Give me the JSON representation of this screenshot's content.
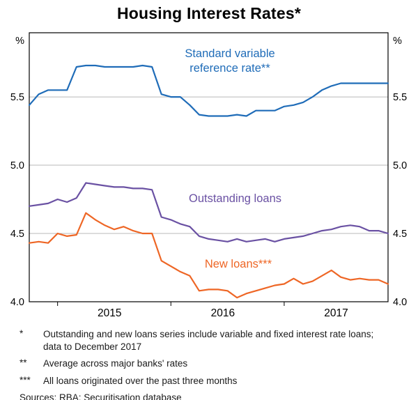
{
  "title": "Housing Interest Rates*",
  "y_unit_left": "%",
  "y_unit_right": "%",
  "annotations": {
    "blue_line1": "Standard variable",
    "blue_line2": "reference rate**",
    "purple": "Outstanding loans",
    "orange": "New loans***"
  },
  "footnotes": [
    {
      "marker": "*",
      "text": "Outstanding and new loans series include variable and fixed interest rate loans; data to December 2017"
    },
    {
      "marker": "**",
      "text": "Average across major banks' rates"
    },
    {
      "marker": "***",
      "text": "All loans originated over the past three months"
    }
  ],
  "sources": "Sources: RBA; Securitisation database",
  "colors": {
    "blue": "#1f6cb8",
    "purple": "#6a51a3",
    "orange": "#ee6625",
    "grid": "#b9b9b9",
    "axis": "#000000"
  },
  "chart_data": {
    "type": "line",
    "title": "Housing Interest Rates*",
    "xlabel": "",
    "ylabel": "%",
    "ylim": [
      4.0,
      5.97
    ],
    "yticks": [
      4.0,
      4.5,
      5.0,
      5.5
    ],
    "grid": true,
    "axis_box": true,
    "year_labels": [
      "2015",
      "2016",
      "2017"
    ],
    "x_months": [
      "2014-10",
      "2014-11",
      "2014-12",
      "2015-01",
      "2015-02",
      "2015-03",
      "2015-04",
      "2015-05",
      "2015-06",
      "2015-07",
      "2015-08",
      "2015-09",
      "2015-10",
      "2015-11",
      "2015-12",
      "2016-01",
      "2016-02",
      "2016-03",
      "2016-04",
      "2016-05",
      "2016-06",
      "2016-07",
      "2016-08",
      "2016-09",
      "2016-10",
      "2016-11",
      "2016-12",
      "2017-01",
      "2017-02",
      "2017-03",
      "2017-04",
      "2017-05",
      "2017-06",
      "2017-07",
      "2017-08",
      "2017-09",
      "2017-10",
      "2017-11",
      "2017-12"
    ],
    "series": [
      {
        "name": "Standard variable reference rate**",
        "color": "#1f6cb8",
        "values": [
          5.44,
          5.52,
          5.55,
          5.55,
          5.55,
          5.72,
          5.73,
          5.73,
          5.72,
          5.72,
          5.72,
          5.72,
          5.73,
          5.72,
          5.52,
          5.5,
          5.5,
          5.44,
          5.37,
          5.36,
          5.36,
          5.36,
          5.37,
          5.36,
          5.4,
          5.4,
          5.4,
          5.43,
          5.44,
          5.46,
          5.5,
          5.55,
          5.58,
          5.6,
          5.6,
          5.6,
          5.6,
          5.6,
          5.6
        ]
      },
      {
        "name": "Outstanding loans",
        "color": "#6a51a3",
        "values": [
          4.7,
          4.71,
          4.72,
          4.75,
          4.73,
          4.76,
          4.87,
          4.86,
          4.85,
          4.84,
          4.84,
          4.83,
          4.83,
          4.82,
          4.62,
          4.6,
          4.57,
          4.55,
          4.48,
          4.46,
          4.45,
          4.44,
          4.46,
          4.44,
          4.45,
          4.46,
          4.44,
          4.46,
          4.47,
          4.48,
          4.5,
          4.52,
          4.53,
          4.55,
          4.56,
          4.55,
          4.52,
          4.52,
          4.5
        ]
      },
      {
        "name": "New loans***",
        "color": "#ee6625",
        "values": [
          4.43,
          4.44,
          4.43,
          4.5,
          4.48,
          4.49,
          4.65,
          4.6,
          4.56,
          4.53,
          4.55,
          4.52,
          4.5,
          4.5,
          4.3,
          4.26,
          4.22,
          4.19,
          4.08,
          4.09,
          4.09,
          4.08,
          4.03,
          4.06,
          4.08,
          4.1,
          4.12,
          4.13,
          4.17,
          4.13,
          4.15,
          4.19,
          4.23,
          4.18,
          4.16,
          4.17,
          4.16,
          4.16,
          4.13
        ]
      }
    ]
  }
}
